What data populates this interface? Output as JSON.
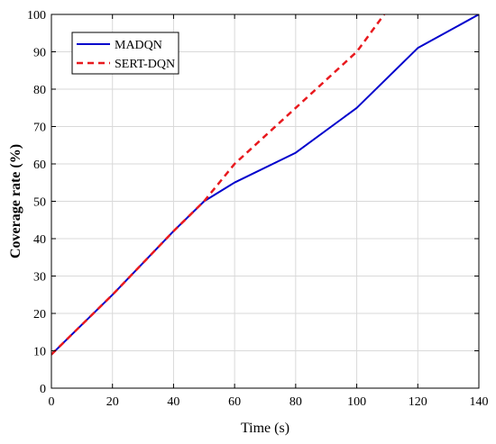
{
  "chart_data": {
    "type": "line",
    "title": "",
    "xlabel": "Time (s)",
    "ylabel": "Coverage rate (%)",
    "xlim": [
      0,
      140
    ],
    "ylim": [
      0,
      100
    ],
    "xticks": [
      0,
      20,
      40,
      60,
      80,
      100,
      120,
      140
    ],
    "yticks": [
      0,
      10,
      20,
      30,
      40,
      50,
      60,
      70,
      80,
      90,
      100
    ],
    "grid": true,
    "legend_position": "top-left",
    "series": [
      {
        "name": "MADQN",
        "color": "#0000cc",
        "style": "solid",
        "x": [
          0,
          20,
          40,
          50,
          60,
          80,
          100,
          120,
          140
        ],
        "y": [
          9,
          25,
          42,
          50,
          55,
          63,
          75,
          91,
          100
        ]
      },
      {
        "name": "SERT-DQN",
        "color": "#e8191e",
        "style": "dashed",
        "x": [
          0,
          20,
          40,
          50,
          60,
          80,
          100,
          109
        ],
        "y": [
          9,
          25,
          42,
          50,
          60,
          75,
          90,
          100
        ]
      }
    ]
  }
}
